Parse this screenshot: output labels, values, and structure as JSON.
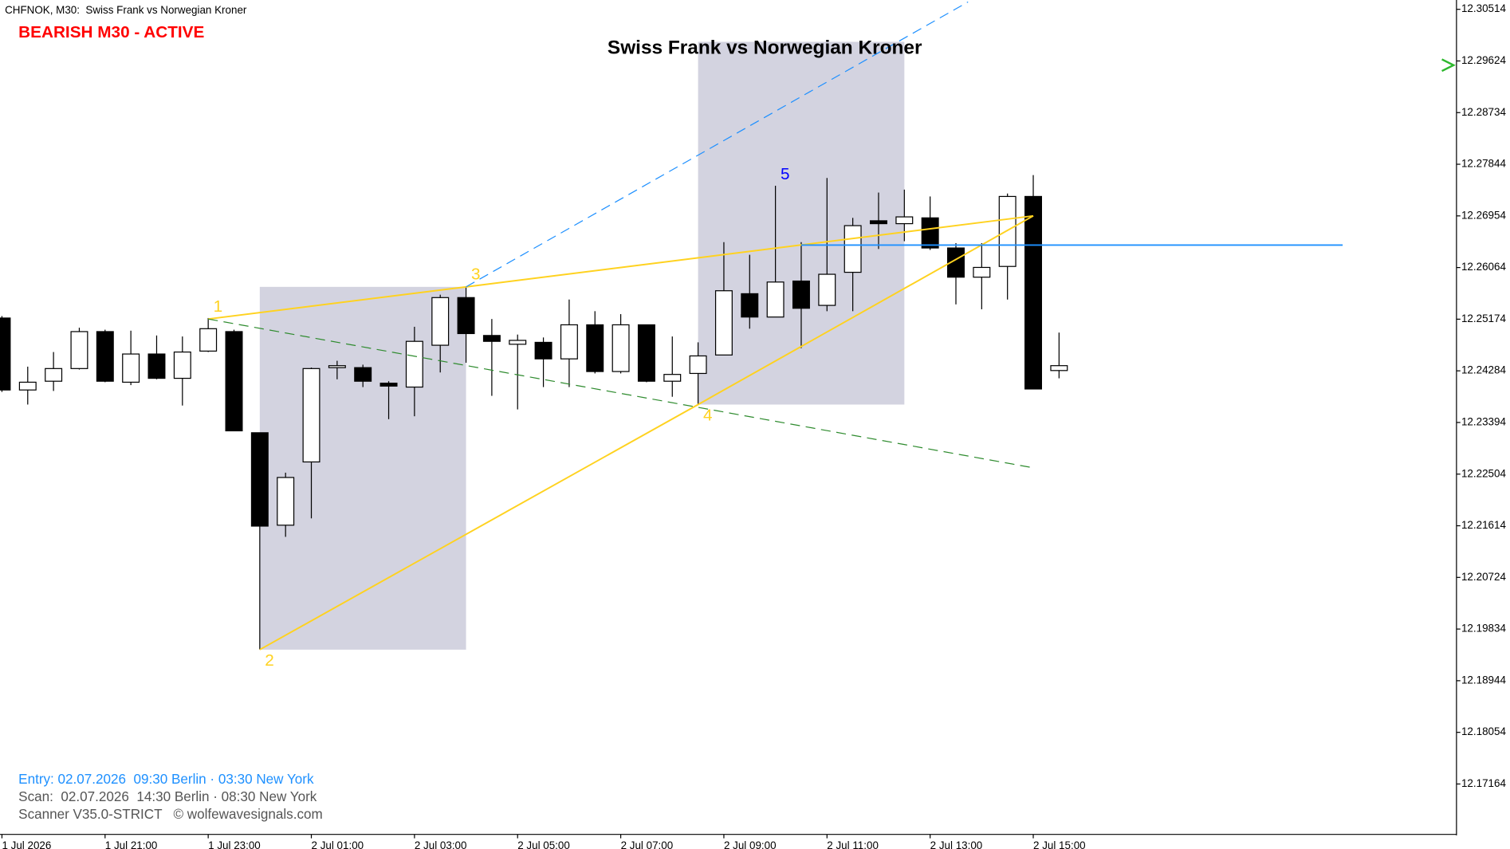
{
  "chart_data": {
    "type": "candlestick",
    "symbol_label": "CHFNOK, M30:  Swiss Frank vs Norwegian Kroner",
    "status": "BEARISH M30 - ACTIVE",
    "title": "Swiss Frank vs Norwegian Kroner",
    "footer": [
      "Entry: 02.07.2026  09:30 Berlin · 03:30 New York",
      "Scan:  02.07.2026  14:30 Berlin · 08:30 New York",
      "Scanner V35.0-STRICT   © wolfewavesignals.com"
    ],
    "categories": [
      "1 Jul 2026",
      null,
      null,
      null,
      "1 Jul 21:00",
      null,
      null,
      null,
      "1 Jul 23:00",
      null,
      null,
      null,
      "2 Jul 01:00",
      null,
      null,
      null,
      "2 Jul 03:00",
      null,
      null,
      null,
      "2 Jul 05:00",
      null,
      null,
      null,
      "2 Jul 07:00",
      null,
      null,
      null,
      "2 Jul 09:00",
      null,
      null,
      null,
      "2 Jul 11:00",
      null,
      null,
      null,
      "2 Jul 13:00",
      null,
      null,
      null,
      "2 Jul 15:00",
      null
    ],
    "open": [
      12.25194,
      12.23954,
      12.24105,
      12.24323,
      12.2496,
      12.24088,
      12.24574,
      12.24155,
      12.24624,
      12.2496,
      12.23217,
      12.21624,
      12.22714,
      12.24339,
      12.24339,
      12.24071,
      12.24004,
      12.24725,
      12.25546,
      12.24893,
      12.24742,
      12.24775,
      12.2449,
      12.25077,
      12.24272,
      12.25077,
      12.24105,
      12.24239,
      12.24557,
      12.25613,
      12.25211,
      12.25831,
      12.25412,
      12.25982,
      12.2687,
      12.2682,
      12.2692,
      12.26401,
      12.25898,
      12.26083,
      12.27289,
      12.24289
    ],
    "high": [
      12.25228,
      12.24356,
      12.24608,
      12.25027,
      12.24993,
      12.24976,
      12.24893,
      12.24876,
      12.25194,
      12.24993,
      12.23217,
      12.22529,
      12.24339,
      12.24457,
      12.2439,
      12.24105,
      12.25043,
      12.25596,
      12.25731,
      12.25177,
      12.24909,
      12.24859,
      12.25513,
      12.25312,
      12.25261,
      12.25077,
      12.24876,
      12.24775,
      12.26502,
      12.26284,
      12.27474,
      12.26502,
      12.27608,
      12.2692,
      12.27356,
      12.27407,
      12.27289,
      12.26485,
      12.26485,
      12.2734,
      12.27658,
      12.24943
    ],
    "low": [
      12.2392,
      12.23703,
      12.23937,
      12.24306,
      12.24088,
      12.24038,
      12.24138,
      12.23686,
      12.24608,
      12.2325,
      12.19479,
      12.21423,
      12.21742,
      12.24138,
      12.24004,
      12.23451,
      12.23501,
      12.24256,
      12.24423,
      12.23853,
      12.23619,
      12.24004,
      12.24004,
      12.24239,
      12.24239,
      12.24088,
      12.23837,
      12.23703,
      12.24557,
      12.2501,
      12.25211,
      12.24675,
      12.25312,
      12.25312,
      12.26384,
      12.26518,
      12.26367,
      12.25429,
      12.25345,
      12.25513,
      12.23971,
      12.24155
    ],
    "close": [
      12.23954,
      12.24088,
      12.24323,
      12.2496,
      12.24105,
      12.24574,
      12.24155,
      12.24608,
      12.2501,
      12.2325,
      12.21608,
      12.22446,
      12.24323,
      12.24373,
      12.24105,
      12.24021,
      12.24792,
      12.25546,
      12.24926,
      12.24792,
      12.24809,
      12.2449,
      12.25077,
      12.24272,
      12.25077,
      12.24105,
      12.24222,
      12.24541,
      12.25664,
      12.25211,
      12.25814,
      12.25362,
      12.25948,
      12.26786,
      12.2682,
      12.26937,
      12.26401,
      12.25898,
      12.26066,
      12.27289,
      12.23971,
      12.24373
    ],
    "up_color": "#ffffff",
    "down_color": "#000000",
    "ylim": [
      12.16295,
      12.30641
    ],
    "yticks": [
      12.30514,
      12.29624,
      12.28734,
      12.27844,
      12.26954,
      12.26064,
      12.25174,
      12.24284,
      12.23394,
      12.22504,
      12.21614,
      12.20724,
      12.19834,
      12.18944,
      12.18054,
      12.17164
    ],
    "zones": [
      {
        "x": [
          10,
          18
        ],
        "y": [
          12.19479,
          12.25731
        ],
        "color": "#d3d3e0"
      },
      {
        "x": [
          27,
          35
        ],
        "y": [
          12.23703,
          12.29954
        ],
        "color": "#d3d3e0"
      }
    ],
    "lines": [
      {
        "x": [
          8,
          18,
          40
        ],
        "y": [
          12.25177,
          12.25731,
          12.26954
        ],
        "color": "#ffd21f",
        "dash": false
      },
      {
        "x": [
          10,
          27,
          40
        ],
        "y": [
          12.19479,
          12.23703,
          12.26954
        ],
        "color": "#ffd21f",
        "dash": false
      },
      {
        "x": [
          8,
          40
        ],
        "y": [
          12.25177,
          12.22613
        ],
        "color": "#2e8b2e",
        "dash": true
      },
      {
        "x": [
          18,
          37.47
        ],
        "y": [
          12.25731,
          12.30641
        ],
        "color": "#1e90ff",
        "dash": true
      },
      {
        "x": [
          31,
          52
        ],
        "y": [
          12.26451,
          12.26451
        ],
        "color": "#1e90ff",
        "dash": false
      }
    ],
    "points": [
      {
        "label": "1",
        "index": 8,
        "price": 12.25177,
        "color": "#ffd21f",
        "position": "above"
      },
      {
        "label": "2",
        "index": 10,
        "price": 12.19479,
        "color": "#ffd21f",
        "position": "below"
      },
      {
        "label": "3",
        "index": 18,
        "price": 12.25731,
        "color": "#ffd21f",
        "position": "above"
      },
      {
        "label": "4",
        "index": 27,
        "price": 12.23703,
        "color": "#ffd21f",
        "position": "below"
      },
      {
        "label": "5",
        "index": 30,
        "price": 12.27457,
        "color": "#0000ff",
        "position": "above"
      }
    ]
  }
}
